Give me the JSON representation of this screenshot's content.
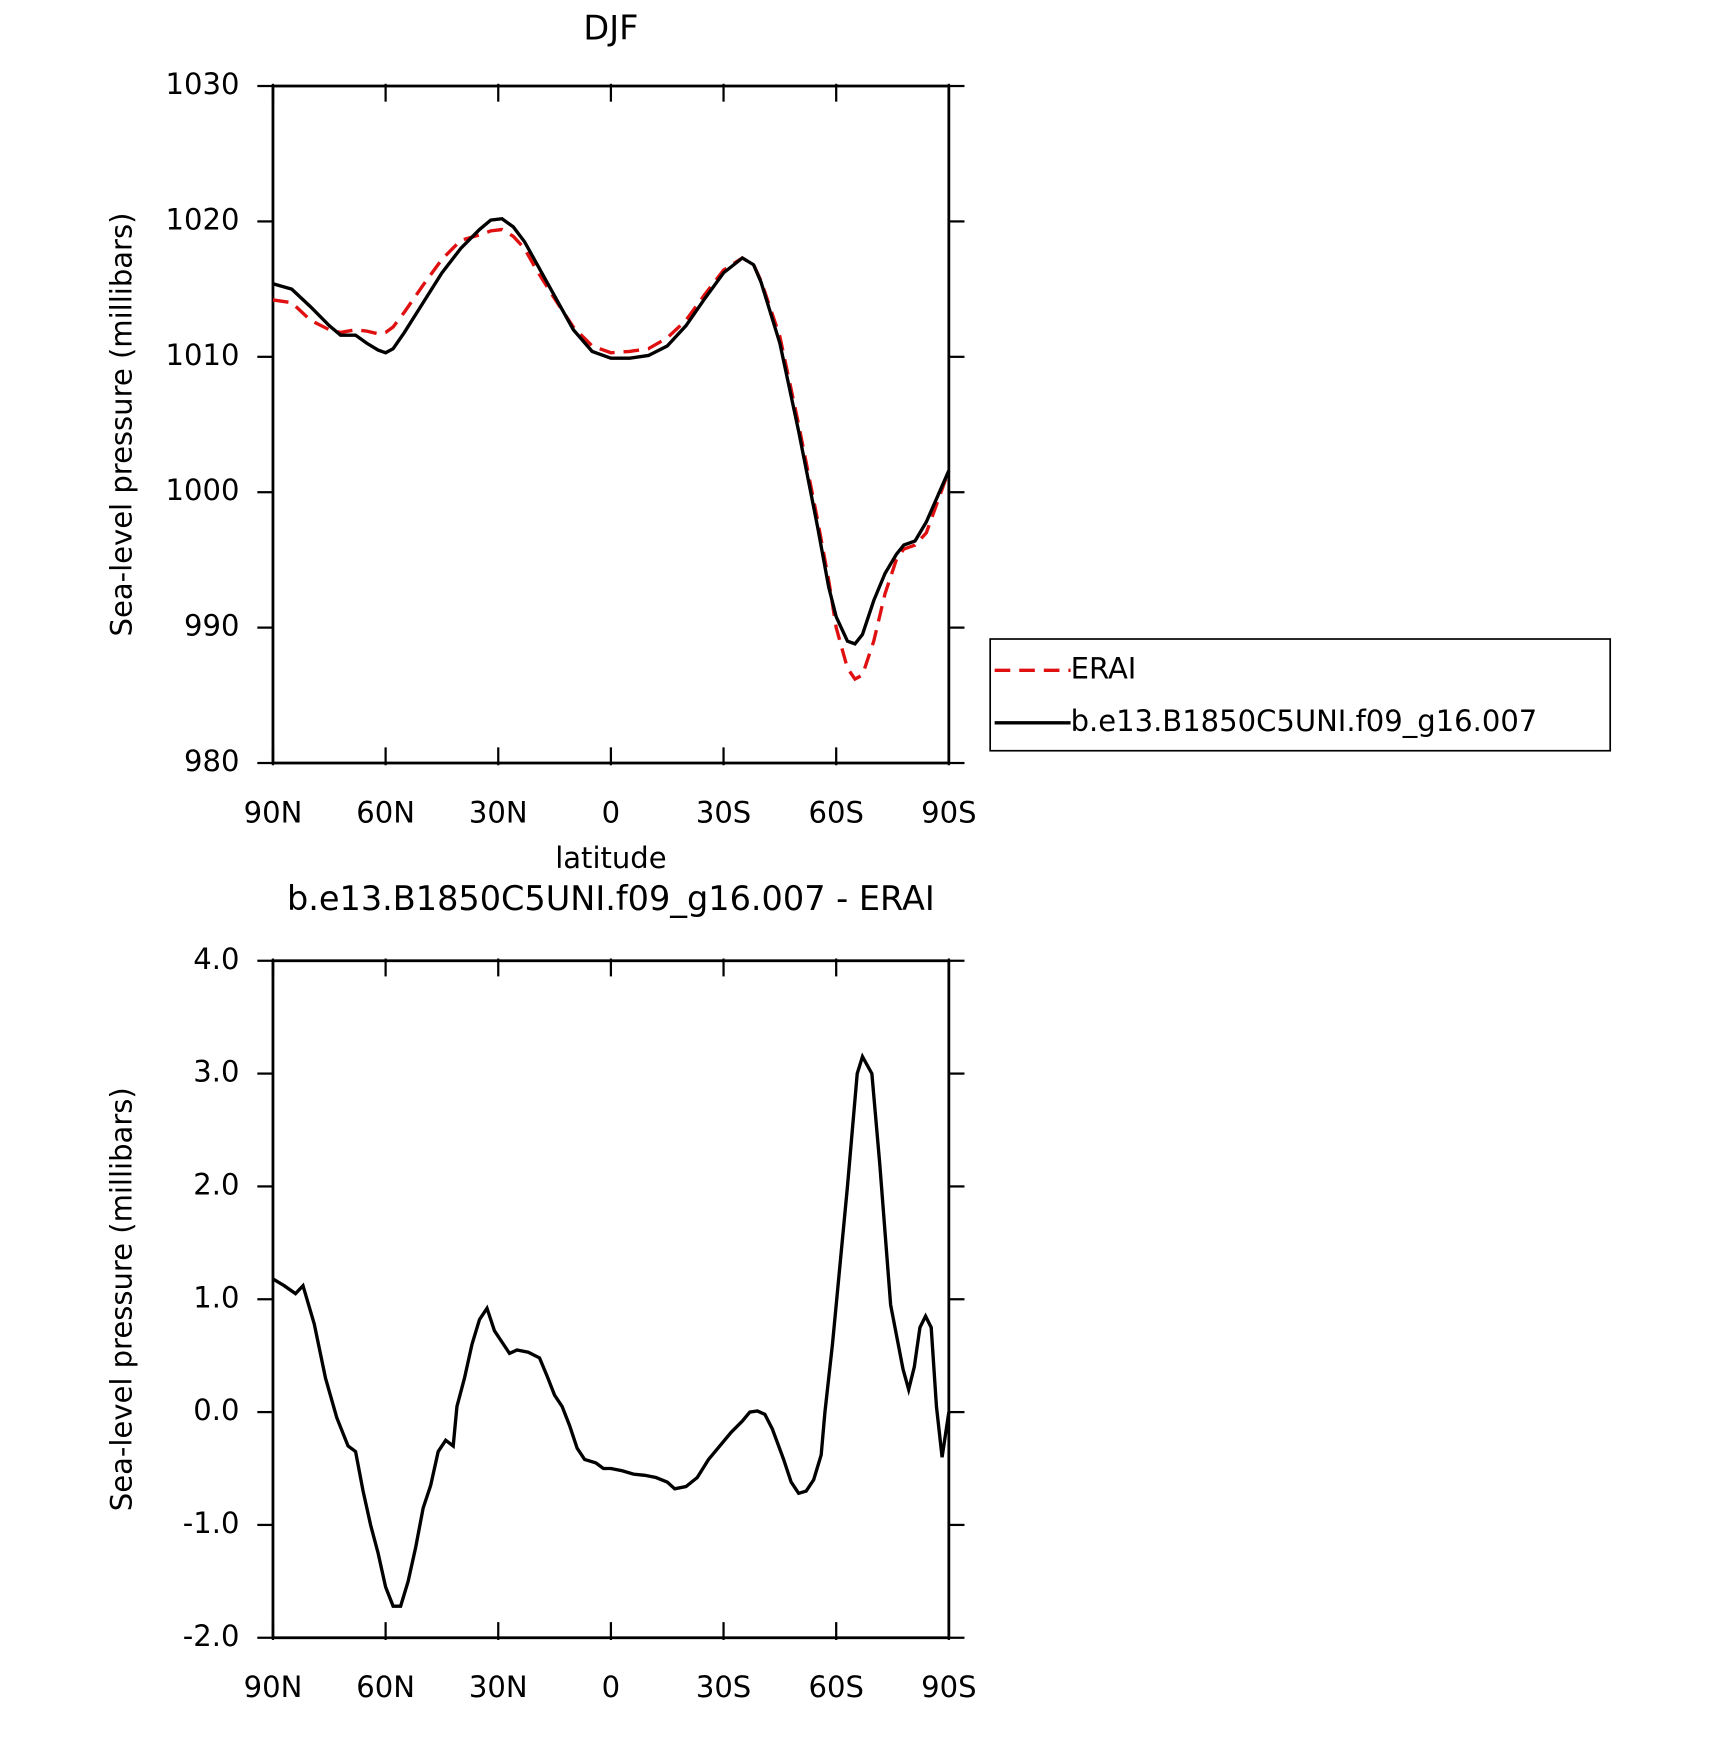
{
  "chart_data": [
    {
      "type": "line",
      "title": "DJF",
      "xlabel": "latitude",
      "ylabel": "Sea-level pressure (millibars)",
      "xlim": [
        90,
        -90
      ],
      "ylim": [
        980,
        1030
      ],
      "xticks": [
        {
          "value": 90,
          "label": "90N"
        },
        {
          "value": 60,
          "label": "60N"
        },
        {
          "value": 30,
          "label": "30N"
        },
        0,
        {
          "value": -30,
          "label": "30S"
        },
        {
          "value": -60,
          "label": "60S"
        },
        {
          "value": -90,
          "label": "90S"
        }
      ],
      "yticks": [
        980,
        990,
        1000,
        1010,
        1020,
        1030
      ],
      "legend": "right",
      "x": [
        90,
        85,
        80,
        75,
        72,
        68,
        65,
        62,
        60,
        58,
        55,
        50,
        45,
        40,
        35,
        32,
        29,
        26,
        23,
        20,
        15,
        10,
        5,
        0,
        -5,
        -10,
        -15,
        -20,
        -25,
        -30,
        -35,
        -38,
        -40,
        -45,
        -50,
        -55,
        -58,
        -60,
        -63,
        -65,
        -67,
        -70,
        -73,
        -76,
        -78,
        -81,
        -84,
        -87,
        -90
      ],
      "series": [
        {
          "name": "ERAI",
          "color": "#e01010",
          "dash": true,
          "values": [
            1014.2,
            1014.0,
            1012.7,
            1012.0,
            1011.8,
            1012.0,
            1011.9,
            1011.7,
            1011.8,
            1012.2,
            1013.3,
            1015.3,
            1017.2,
            1018.6,
            1019.0,
            1019.3,
            1019.4,
            1018.9,
            1018.0,
            1016.5,
            1014.3,
            1012.2,
            1010.8,
            1010.3,
            1010.4,
            1010.6,
            1011.4,
            1012.7,
            1014.6,
            1016.4,
            1017.3,
            1016.8,
            1015.6,
            1011.5,
            1005.0,
            998.0,
            993.5,
            990.0,
            987.0,
            986.2,
            986.5,
            989.0,
            992.5,
            995.0,
            995.8,
            996.1,
            997.0,
            999.3,
            1001.6
          ]
        },
        {
          "name": "b.e13.B1850C5UNI.f09_g16.007",
          "color": "#000000",
          "dash": false,
          "values": [
            1015.4,
            1015.0,
            1013.7,
            1012.3,
            1011.6,
            1011.6,
            1011.0,
            1010.5,
            1010.3,
            1010.6,
            1011.8,
            1014.0,
            1016.2,
            1018.0,
            1019.4,
            1020.1,
            1020.2,
            1019.6,
            1018.5,
            1017.0,
            1014.5,
            1012.0,
            1010.4,
            1009.9,
            1009.9,
            1010.1,
            1010.8,
            1012.3,
            1014.3,
            1016.2,
            1017.3,
            1016.8,
            1015.5,
            1011.0,
            1004.5,
            997.5,
            993.0,
            990.8,
            989.0,
            988.8,
            989.5,
            992.0,
            994.0,
            995.4,
            996.1,
            996.4,
            997.8,
            999.7,
            1001.6
          ]
        }
      ]
    },
    {
      "type": "line",
      "title": "b.e13.B1850C5UNI.f09_g16.007 - ERAI",
      "xlabel": "latitude",
      "ylabel": "Sea-level pressure (millibars)",
      "xlim": [
        90,
        -90
      ],
      "ylim": [
        -2,
        4
      ],
      "xticks": [
        {
          "value": 90,
          "label": "90N"
        },
        {
          "value": 60,
          "label": "60N"
        },
        {
          "value": 30,
          "label": "30N"
        },
        0,
        {
          "value": -30,
          "label": "30S"
        },
        {
          "value": -60,
          "label": "60S"
        },
        {
          "value": -90,
          "label": "90S"
        }
      ],
      "yticks": [
        {
          "value": -2,
          "label": "-2.0"
        },
        {
          "value": -1,
          "label": "-1.0"
        },
        {
          "value": 0,
          "label": "0.0"
        },
        {
          "value": 1,
          "label": "1.0"
        },
        {
          "value": 2,
          "label": "2.0"
        },
        {
          "value": 3,
          "label": "3.0"
        },
        {
          "value": 4,
          "label": "4.0"
        }
      ],
      "x": [
        90,
        87,
        84,
        82,
        79,
        76,
        73,
        70,
        68,
        66,
        64,
        62,
        60,
        58,
        56,
        54,
        52,
        50,
        48,
        46,
        44,
        42,
        41,
        39,
        37,
        35,
        33,
        31,
        29,
        27,
        25,
        22,
        19,
        17,
        15,
        13,
        11,
        9,
        7,
        4,
        2,
        0,
        -3,
        -6,
        -9,
        -12,
        -15,
        -17,
        -20,
        -23,
        -26,
        -29,
        -32,
        -35,
        -37,
        -39,
        -41,
        -43,
        -46,
        -48,
        -50,
        -52,
        -54,
        -56,
        -57,
        -59,
        -61,
        -63,
        -65.6,
        -67,
        -69.5,
        -71.6,
        -74.5,
        -77.8,
        -79.3,
        -80.8,
        -82.3,
        -83.8,
        -85.3,
        -86.7,
        -88.2,
        -90
      ],
      "series": [
        {
          "color": "#000000",
          "dash": false,
          "values": [
            1.18,
            1.12,
            1.05,
            1.12,
            0.78,
            0.3,
            -0.05,
            -0.3,
            -0.35,
            -0.7,
            -1.0,
            -1.25,
            -1.55,
            -1.72,
            -1.72,
            -1.5,
            -1.2,
            -0.85,
            -0.65,
            -0.35,
            -0.25,
            -0.3,
            0.05,
            0.3,
            0.6,
            0.82,
            0.92,
            0.72,
            0.62,
            0.52,
            0.55,
            0.53,
            0.48,
            0.32,
            0.15,
            0.05,
            -0.12,
            -0.32,
            -0.42,
            -0.45,
            -0.5,
            -0.5,
            -0.52,
            -0.55,
            -0.56,
            -0.58,
            -0.62,
            -0.68,
            -0.66,
            -0.58,
            -0.42,
            -0.3,
            -0.18,
            -0.08,
            0.0,
            0.01,
            -0.02,
            -0.15,
            -0.42,
            -0.62,
            -0.72,
            -0.7,
            -0.6,
            -0.38,
            0.0,
            0.6,
            1.3,
            2.0,
            3.0,
            3.15,
            3.0,
            2.2,
            0.95,
            0.38,
            0.2,
            0.4,
            0.75,
            0.85,
            0.75,
            0.05,
            -0.4,
            0.0
          ]
        }
      ]
    }
  ]
}
